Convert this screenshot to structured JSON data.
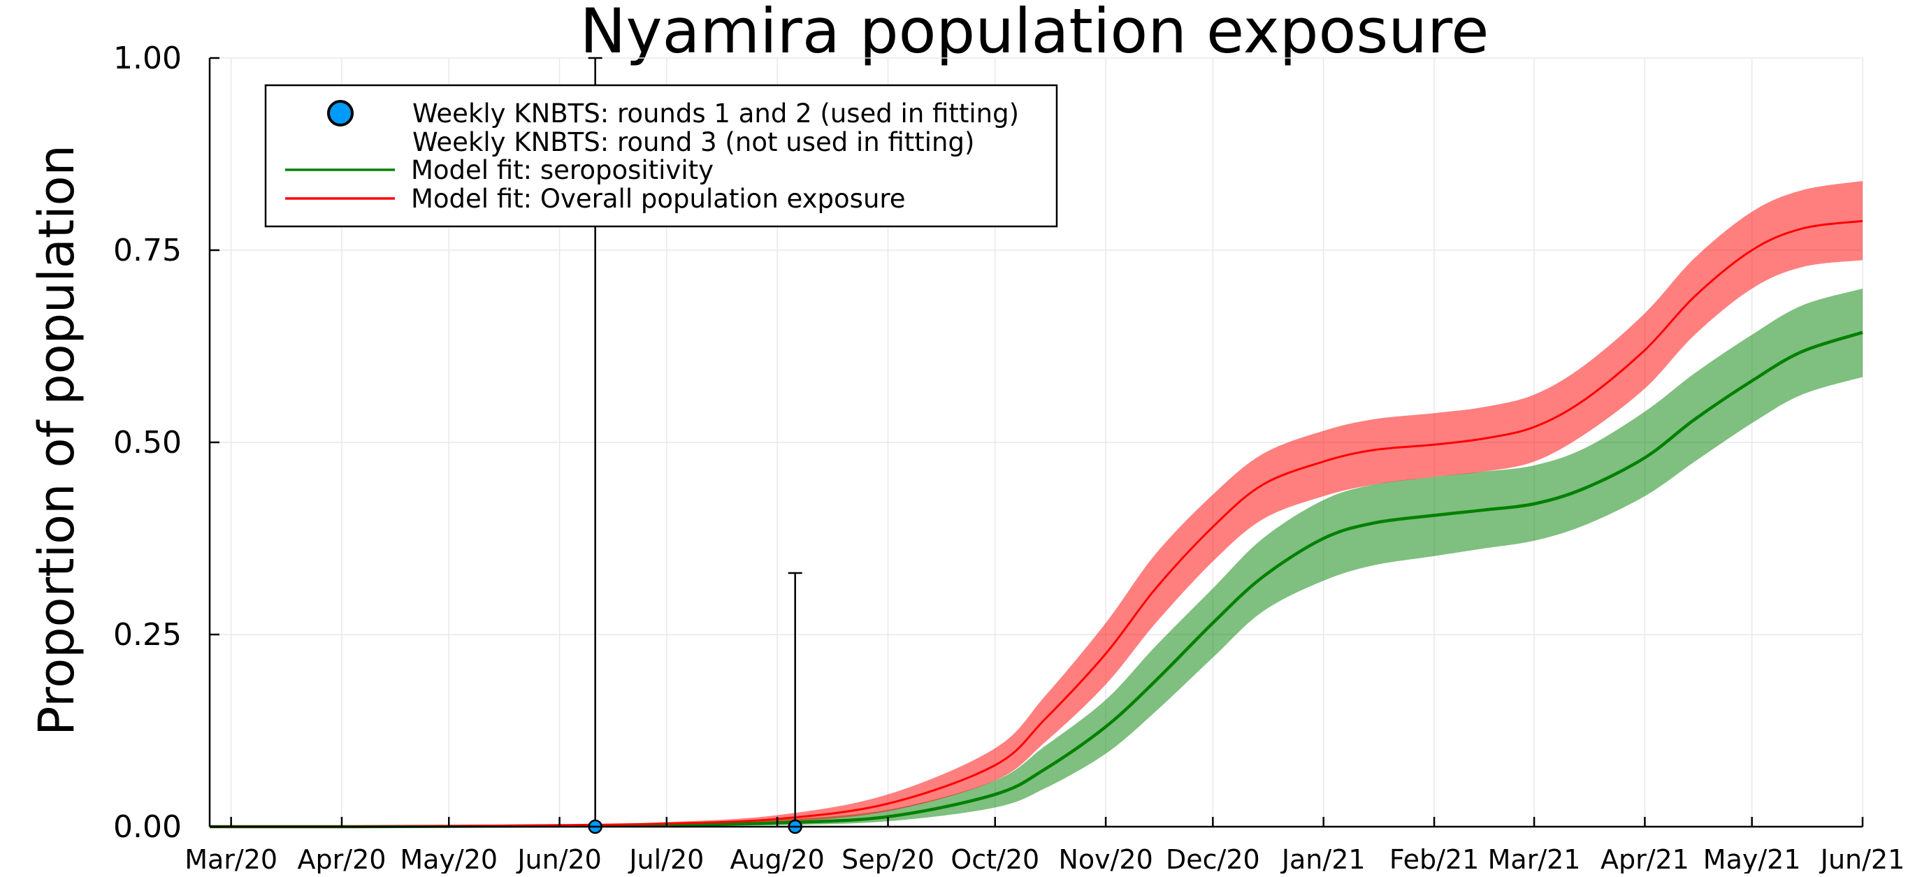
{
  "chart_data": {
    "type": "line",
    "title": "Nyamira population exposure",
    "xlabel": "",
    "ylabel": "Proportion of population",
    "ylim": [
      0,
      1
    ],
    "xlim": [
      "2020-02-24",
      "2021-06-01"
    ],
    "grid": true,
    "legend_position": "top-left",
    "y_ticks": [
      {
        "value": 0.0,
        "label": "0.00"
      },
      {
        "value": 0.25,
        "label": "0.25"
      },
      {
        "value": 0.5,
        "label": "0.50"
      },
      {
        "value": 0.75,
        "label": "0.75"
      },
      {
        "value": 1.0,
        "label": "1.00"
      }
    ],
    "x_ticks": [
      {
        "date": "2020-03-01",
        "label": "Mar/20"
      },
      {
        "date": "2020-04-01",
        "label": "Apr/20"
      },
      {
        "date": "2020-05-01",
        "label": "May/20"
      },
      {
        "date": "2020-06-01",
        "label": "Jun/20"
      },
      {
        "date": "2020-07-01",
        "label": "Jul/20"
      },
      {
        "date": "2020-08-01",
        "label": "Aug/20"
      },
      {
        "date": "2020-09-01",
        "label": "Sep/20"
      },
      {
        "date": "2020-10-01",
        "label": "Oct/20"
      },
      {
        "date": "2020-11-01",
        "label": "Nov/20"
      },
      {
        "date": "2020-12-01",
        "label": "Dec/20"
      },
      {
        "date": "2021-01-01",
        "label": "Jan/21"
      },
      {
        "date": "2021-02-01",
        "label": "Feb/21"
      },
      {
        "date": "2021-03-01",
        "label": "Mar/21"
      },
      {
        "date": "2021-04-01",
        "label": "Apr/21"
      },
      {
        "date": "2021-05-01",
        "label": "May/21"
      },
      {
        "date": "2021-06-01",
        "label": "Jun/21"
      }
    ],
    "legend": [
      {
        "label": "Weekly KNBTS: rounds 1 and 2 (used in fitting)",
        "marker": "circle",
        "color": "#009AFA"
      },
      {
        "label": "Weekly KNBTS: round 3 (not used in fitting)",
        "marker": "none",
        "color": "#E26F46"
      },
      {
        "label": "Model fit: seropositivity",
        "marker": "line",
        "color": "#008000"
      },
      {
        "label": "Model fit: Overall population exposure",
        "marker": "line",
        "color": "#FF0000"
      }
    ],
    "observations": [
      {
        "series": "Weekly KNBTS: rounds 1 and 2 (used in fitting)",
        "date": "2020-06-11",
        "y": 0.0,
        "ylow": 0.0,
        "yhigh": 1.0
      },
      {
        "series": "Weekly KNBTS: rounds 1 and 2 (used in fitting)",
        "date": "2020-08-06",
        "y": 0.0,
        "ylow": 0.0,
        "yhigh": 0.33
      }
    ],
    "series": [
      {
        "name": "Model fit: seropositivity",
        "color": "#008000",
        "band_color": "#008000",
        "band_opacity": 0.5,
        "x": [
          "2020-02-24",
          "2020-04-01",
          "2020-06-01",
          "2020-07-01",
          "2020-08-01",
          "2020-09-01",
          "2020-10-01",
          "2020-10-15",
          "2020-11-01",
          "2020-11-15",
          "2020-12-01",
          "2020-12-15",
          "2021-01-01",
          "2021-01-15",
          "2021-02-01",
          "2021-02-15",
          "2021-03-01",
          "2021-03-15",
          "2021-04-01",
          "2021-04-15",
          "2021-05-01",
          "2021-05-15",
          "2021-06-01"
        ],
        "y": [
          0.0,
          0.0,
          0.001,
          0.002,
          0.005,
          0.013,
          0.042,
          0.075,
          0.13,
          0.19,
          0.265,
          0.325,
          0.375,
          0.395,
          0.405,
          0.412,
          0.42,
          0.44,
          0.48,
          0.53,
          0.58,
          0.618,
          0.643
        ],
        "lower": [
          0.0,
          0.0,
          0.0,
          0.001,
          0.002,
          0.007,
          0.025,
          0.05,
          0.095,
          0.15,
          0.22,
          0.28,
          0.32,
          0.34,
          0.352,
          0.362,
          0.372,
          0.392,
          0.43,
          0.475,
          0.525,
          0.562,
          0.585
        ],
        "upper": [
          0.0,
          0.001,
          0.002,
          0.004,
          0.009,
          0.022,
          0.06,
          0.105,
          0.165,
          0.235,
          0.31,
          0.375,
          0.425,
          0.445,
          0.455,
          0.462,
          0.47,
          0.492,
          0.54,
          0.59,
          0.64,
          0.678,
          0.7
        ]
      },
      {
        "name": "Model fit: Overall population exposure",
        "color": "#FF0000",
        "band_color": "#FF0000",
        "band_opacity": 0.5,
        "x": [
          "2020-02-24",
          "2020-04-01",
          "2020-06-01",
          "2020-07-01",
          "2020-08-01",
          "2020-09-01",
          "2020-10-01",
          "2020-10-15",
          "2020-11-01",
          "2020-11-15",
          "2020-12-01",
          "2020-12-15",
          "2021-01-01",
          "2021-01-15",
          "2021-02-01",
          "2021-02-15",
          "2021-03-01",
          "2021-03-15",
          "2021-04-01",
          "2021-04-15",
          "2021-05-01",
          "2021-05-15",
          "2021-06-01"
        ],
        "y": [
          0.0,
          0.0,
          0.002,
          0.004,
          0.01,
          0.03,
          0.08,
          0.14,
          0.225,
          0.31,
          0.39,
          0.445,
          0.475,
          0.49,
          0.497,
          0.505,
          0.52,
          0.555,
          0.62,
          0.69,
          0.75,
          0.778,
          0.788
        ],
        "lower": [
          0.0,
          0.0,
          0.001,
          0.002,
          0.006,
          0.02,
          0.06,
          0.11,
          0.185,
          0.265,
          0.345,
          0.4,
          0.43,
          0.445,
          0.455,
          0.462,
          0.475,
          0.51,
          0.57,
          0.64,
          0.7,
          0.728,
          0.737
        ],
        "upper": [
          0.0,
          0.001,
          0.003,
          0.006,
          0.015,
          0.042,
          0.102,
          0.17,
          0.265,
          0.355,
          0.432,
          0.485,
          0.515,
          0.53,
          0.538,
          0.546,
          0.562,
          0.6,
          0.668,
          0.74,
          0.8,
          0.828,
          0.84
        ]
      }
    ]
  }
}
